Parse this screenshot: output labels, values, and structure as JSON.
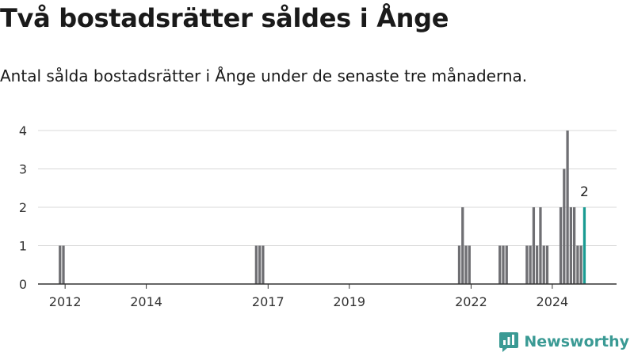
{
  "header": {
    "title": "Två bostadsrätter såldes i Ånge",
    "subtitle": "Antal sålda bostadsrätter i Ånge under de senaste tre månaderna."
  },
  "brand": {
    "name": "Newsworthy",
    "color": "#3a9a94"
  },
  "colors": {
    "bar": "#6f6f73",
    "highlight": "#1a9b92",
    "grid": "#d8d8d8",
    "axis": "#333333"
  },
  "chart_data": {
    "type": "bar",
    "title": "Två bostadsrätter såldes i Ånge",
    "subtitle": "Antal sålda bostadsrätter i Ånge under de senaste tre månaderna.",
    "xlabel": "",
    "ylabel": "",
    "ylim": [
      0,
      4
    ],
    "yticks": [
      0,
      1,
      2,
      3,
      4
    ],
    "xlim": [
      "2011-05",
      "2025-08"
    ],
    "xticks": [
      {
        "date": "2012-01",
        "label": "2012"
      },
      {
        "date": "2014-01",
        "label": "2014"
      },
      {
        "date": "2017-01",
        "label": "2017"
      },
      {
        "date": "2019-01",
        "label": "2019"
      },
      {
        "date": "2022-01",
        "label": "2022"
      },
      {
        "date": "2024-01",
        "label": "2024"
      }
    ],
    "grid": true,
    "bar_width_months": 1,
    "series": [
      {
        "values": [
          {
            "date": "2011-11",
            "value": 1
          },
          {
            "date": "2011-12",
            "value": 1
          },
          {
            "date": "2016-09",
            "value": 1
          },
          {
            "date": "2016-10",
            "value": 1
          },
          {
            "date": "2016-11",
            "value": 1
          },
          {
            "date": "2021-09",
            "value": 1
          },
          {
            "date": "2021-10",
            "value": 2
          },
          {
            "date": "2021-11",
            "value": 1
          },
          {
            "date": "2021-12",
            "value": 1
          },
          {
            "date": "2022-09",
            "value": 1
          },
          {
            "date": "2022-10",
            "value": 1
          },
          {
            "date": "2022-11",
            "value": 1
          },
          {
            "date": "2023-05",
            "value": 1
          },
          {
            "date": "2023-06",
            "value": 1
          },
          {
            "date": "2023-07",
            "value": 2
          },
          {
            "date": "2023-08",
            "value": 1
          },
          {
            "date": "2023-09",
            "value": 2
          },
          {
            "date": "2023-10",
            "value": 1
          },
          {
            "date": "2023-11",
            "value": 1
          },
          {
            "date": "2024-03",
            "value": 2
          },
          {
            "date": "2024-04",
            "value": 3
          },
          {
            "date": "2024-05",
            "value": 4
          },
          {
            "date": "2024-06",
            "value": 2
          },
          {
            "date": "2024-07",
            "value": 2
          },
          {
            "date": "2024-08",
            "value": 1
          },
          {
            "date": "2024-09",
            "value": 1
          }
        ]
      }
    ],
    "highlight": {
      "date": "2024-10",
      "value": 2,
      "label": "2"
    }
  }
}
